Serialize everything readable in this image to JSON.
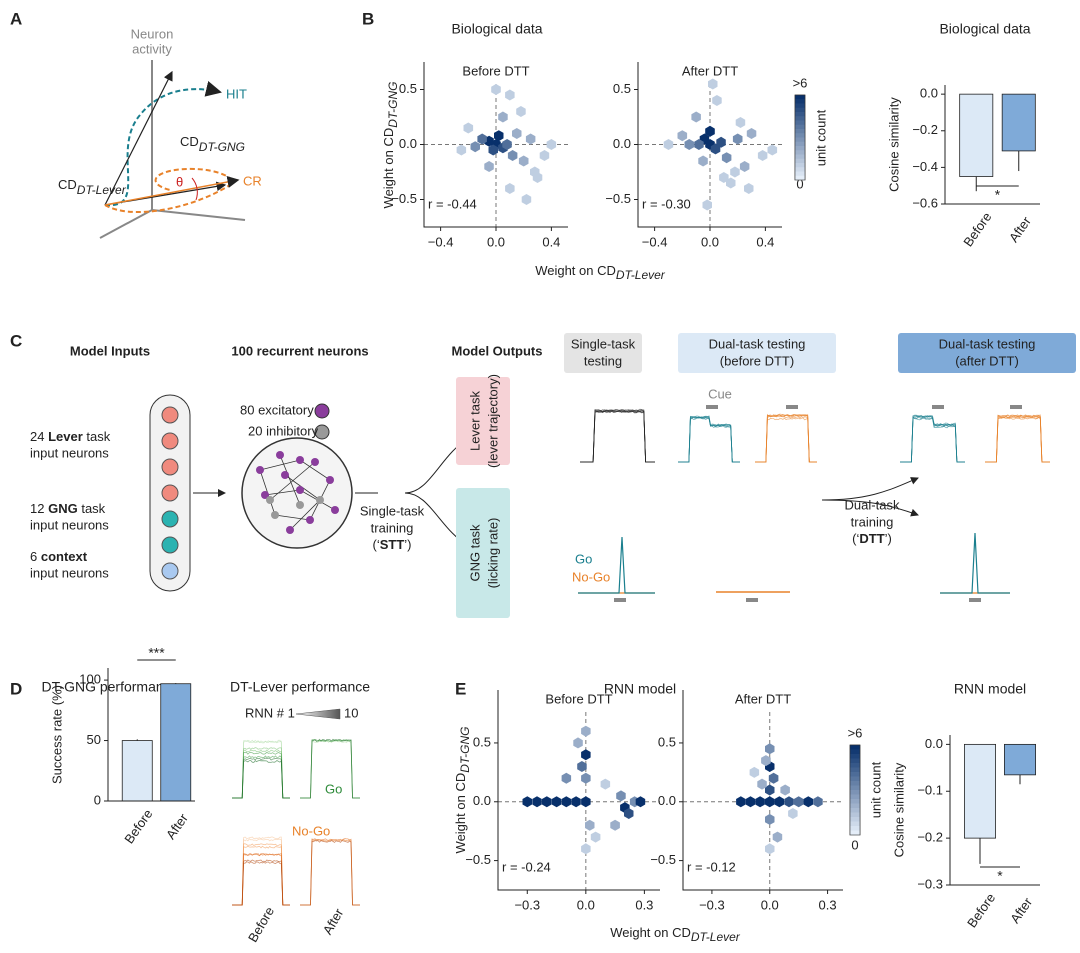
{
  "figure": {
    "panel_labels": [
      "A",
      "B",
      "C",
      "D",
      "E"
    ],
    "a": {
      "axis_label": [
        "Neuron",
        "activity"
      ],
      "hit": "HIT",
      "cr": "CR",
      "theta": "θ",
      "cd": "CD",
      "gng_sub": "DT-GNG",
      "lever_sub": "DT-Lever"
    },
    "b": {
      "title": "Biological data",
      "ylabel": "Weight on CD",
      "ylabel_sub": "DT-GNG",
      "xlabel": "Weight on CD",
      "xlabel_sub": "DT-Lever",
      "colorbar": {
        "top": ">6",
        "bottom": "0",
        "title": "unit count"
      }
    },
    "c": {
      "inputs_title": "Model Inputs",
      "neurons_title": "100 recurrent neurons",
      "outputs_title": "Model Outputs",
      "lever_in": [
        "24",
        "Lever",
        "task",
        "input neurons"
      ],
      "gng_in": [
        "12",
        "GNG",
        "task",
        "input neurons"
      ],
      "context_in": [
        "6",
        "context",
        "input neurons"
      ],
      "excitatory": "80 excitatory",
      "inhibitory": "20 inhibitory",
      "stt": [
        "Single-task",
        "training",
        "(‘",
        "STT",
        "’)"
      ],
      "dtt": [
        "Dual-task",
        "training",
        "(‘",
        "DTT",
        "’)"
      ],
      "lever_task": [
        "Lever task",
        "(lever trajectory)"
      ],
      "gng_task": [
        "GNG task",
        "(licking rate)"
      ],
      "single_testing": [
        "Single-task",
        "testing"
      ],
      "dual_before": [
        "Dual-task testing",
        "(before DTT)"
      ],
      "dual_after": [
        "Dual-task testing",
        "(after DTT)"
      ],
      "cue": "Cue",
      "go": "Go",
      "nogo": "No-Go"
    },
    "d": {
      "lever_title": "DT-Lever performance",
      "rnn": "RNN # 1",
      "rnn_end": "10",
      "go": "Go",
      "nogo": "No-Go",
      "before": "Before",
      "after": "After"
    },
    "e": {
      "title": "RNN model",
      "ylabel": "Weight on CD",
      "ylabel_sub": "DT-GNG",
      "xlabel": "Weight on CD",
      "xlabel_sub": "DT-Lever",
      "colorbar": {
        "top": ">6",
        "bottom": "0",
        "title": "unit count"
      }
    }
  },
  "chart_data": [
    {
      "type": "hexbin",
      "title": "Before DTT",
      "annotation": "r = -0.44",
      "xlim": [
        -0.52,
        0.52
      ],
      "ylim": [
        -0.75,
        0.75
      ],
      "clim": [
        0,
        6
      ],
      "cmap": [
        "#e4edf8",
        "#08306b"
      ],
      "ref_lines": [
        0,
        0
      ],
      "xticks": [
        {
          "value": -0.4,
          "label": "−0.4"
        },
        {
          "value": 0,
          "label": "0.0"
        },
        {
          "value": 0.4,
          "label": "0.4"
        }
      ],
      "yticks": [
        {
          "value": -0.5,
          "label": "−0.5"
        },
        {
          "value": 0,
          "label": "0.0"
        },
        {
          "value": 0.5,
          "label": "0.5"
        }
      ],
      "x": [
        0,
        -0.05,
        0.05,
        0.02,
        -0.02,
        0.08,
        -0.1,
        0.12,
        0.15,
        -0.15,
        0.2,
        0.25,
        0.3,
        -0.2,
        0.05,
        0.1,
        -0.05,
        0.18,
        0.35,
        0.1,
        -0.25,
        0.22,
        0.4,
        0.0,
        0.28
      ],
      "y": [
        0,
        0.03,
        -0.03,
        0.08,
        -0.05,
        0.0,
        0.05,
        -0.1,
        0.1,
        -0.02,
        -0.15,
        0.05,
        -0.3,
        0.15,
        0.25,
        -0.4,
        -0.2,
        0.3,
        -0.1,
        0.45,
        -0.05,
        -0.5,
        0.0,
        0.5,
        -0.25
      ],
      "counts": [
        6,
        6,
        5,
        6,
        5,
        4,
        4,
        3,
        2,
        3,
        2,
        2,
        1,
        1,
        2,
        1,
        2,
        1,
        1,
        1,
        1,
        1,
        1,
        1,
        1
      ]
    },
    {
      "type": "hexbin",
      "title": "After DTT",
      "annotation": "r = -0.30",
      "xlim": [
        -0.52,
        0.52
      ],
      "ylim": [
        -0.75,
        0.75
      ],
      "clim": [
        0,
        6
      ],
      "cmap": [
        "#e4edf8",
        "#08306b"
      ],
      "ref_lines": [
        0,
        0
      ],
      "xticks": [
        {
          "value": -0.4,
          "label": "−0.4"
        },
        {
          "value": 0,
          "label": "0.0"
        },
        {
          "value": 0.4,
          "label": "0.4"
        }
      ],
      "yticks": [
        {
          "value": -0.5,
          "label": "−0.5"
        },
        {
          "value": 0,
          "label": "0.0"
        },
        {
          "value": 0.5,
          "label": "0.5"
        }
      ],
      "x": [
        0,
        -0.04,
        0.04,
        0.0,
        -0.08,
        0.08,
        -0.15,
        0.12,
        0.2,
        -0.2,
        0.25,
        0.3,
        0.15,
        -0.1,
        0.05,
        0.1,
        -0.05,
        0.22,
        0.38,
        0.02,
        -0.3,
        0.28,
        0.45,
        -0.02,
        0.18
      ],
      "y": [
        0,
        0.05,
        -0.04,
        0.12,
        0.0,
        0.02,
        0.0,
        -0.12,
        0.05,
        0.08,
        -0.2,
        0.1,
        -0.35,
        0.25,
        0.4,
        -0.3,
        -0.15,
        0.2,
        -0.1,
        0.55,
        0.0,
        -0.4,
        -0.05,
        -0.55,
        -0.25
      ],
      "counts": [
        6,
        6,
        5,
        6,
        4,
        5,
        3,
        3,
        3,
        2,
        2,
        2,
        1,
        2,
        1,
        1,
        2,
        1,
        1,
        1,
        1,
        1,
        1,
        1,
        1
      ]
    },
    {
      "type": "bar",
      "title": "Biological data",
      "ylabel": "Cosine similarity",
      "categories": [
        "Before",
        "After"
      ],
      "values": [
        -0.45,
        -0.31
      ],
      "errors": [
        0.08,
        0.11
      ],
      "colors": [
        "#dce9f6",
        "#7faad8"
      ],
      "ylim": [
        -0.6,
        0.05
      ],
      "annotation": "*",
      "yticks": [
        {
          "value": 0,
          "label": "0.0"
        },
        {
          "value": -0.2,
          "label": "−0.2"
        },
        {
          "value": -0.4,
          "label": "−0.4"
        },
        {
          "value": -0.6,
          "label": "−0.6"
        }
      ]
    },
    {
      "type": "bar",
      "title": "DT-GNG performance",
      "ylabel": "Success rate (%)",
      "categories": [
        "Before",
        "After"
      ],
      "values": [
        50,
        97
      ],
      "errors": [
        1,
        0.5
      ],
      "colors": [
        "#dce9f6",
        "#7faad8"
      ],
      "ylim": [
        0,
        110
      ],
      "annotation": "***",
      "annotation_top": true,
      "yticks": [
        0,
        50,
        100
      ]
    },
    {
      "type": "hexbin",
      "title": "Before DTT",
      "annotation": "r = -0.24",
      "xlim": [
        -0.45,
        0.38
      ],
      "ylim": [
        -0.75,
        0.95
      ],
      "clim": [
        0,
        6
      ],
      "cmap": [
        "#e4edf8",
        "#08306b"
      ],
      "ref_lines": [
        0,
        0
      ],
      "xticks": [
        {
          "value": -0.3,
          "label": "−0.3"
        },
        {
          "value": 0,
          "label": "0.0"
        },
        {
          "value": 0.3,
          "label": "0.3"
        }
      ],
      "yticks": [
        {
          "value": -0.5,
          "label": "−0.5"
        },
        {
          "value": 0,
          "label": "0.0"
        },
        {
          "value": 0.5,
          "label": "0.5"
        }
      ],
      "x": [
        -0.3,
        -0.25,
        -0.2,
        -0.15,
        -0.1,
        -0.05,
        0,
        0,
        0,
        0,
        -0.02,
        0.02,
        0.2,
        0.22,
        0.25,
        0.18,
        0.1,
        -0.1,
        0.05,
        0.15,
        0.28,
        0.0,
        -0.04
      ],
      "y": [
        0,
        0,
        0,
        0,
        0,
        0,
        0,
        0.2,
        0.4,
        0.6,
        0.3,
        -0.2,
        -0.05,
        -0.1,
        0,
        0.05,
        0.15,
        0.2,
        -0.3,
        -0.2,
        0,
        -0.4,
        0.5
      ],
      "counts": [
        6,
        6,
        6,
        6,
        6,
        6,
        6,
        3,
        6,
        2,
        4,
        2,
        6,
        5,
        3,
        3,
        1,
        3,
        1,
        2,
        6,
        1,
        2
      ]
    },
    {
      "type": "hexbin",
      "title": "After DTT",
      "annotation": "r = -0.12",
      "xlim": [
        -0.45,
        0.38
      ],
      "ylim": [
        -0.75,
        0.95
      ],
      "clim": [
        0,
        6
      ],
      "cmap": [
        "#e4edf8",
        "#08306b"
      ],
      "ref_lines": [
        0,
        0
      ],
      "xticks": [
        {
          "value": -0.3,
          "label": "−0.3"
        },
        {
          "value": 0,
          "label": "0.0"
        },
        {
          "value": 0.3,
          "label": "0.3"
        }
      ],
      "yticks": [
        {
          "value": -0.5,
          "label": "−0.5"
        },
        {
          "value": 0,
          "label": "0.0"
        },
        {
          "value": 0.5,
          "label": "0.5"
        }
      ],
      "x": [
        -0.15,
        -0.1,
        -0.05,
        0,
        0,
        0,
        0,
        0,
        0.05,
        0.1,
        0.15,
        0.2,
        0.25,
        0.02,
        -0.02,
        0.04,
        -0.04,
        0.08,
        0.12,
        0.0,
        -0.08
      ],
      "y": [
        0,
        0,
        0,
        0,
        0.1,
        0.3,
        0.45,
        -0.15,
        0,
        0,
        0,
        0,
        0,
        0.2,
        0.35,
        -0.3,
        0.15,
        0.1,
        -0.1,
        -0.4,
        0.25
      ],
      "counts": [
        6,
        6,
        6,
        6,
        5,
        6,
        3,
        3,
        6,
        5,
        4,
        6,
        4,
        4,
        2,
        2,
        2,
        2,
        1,
        1,
        1
      ]
    },
    {
      "type": "bar",
      "title": "RNN model",
      "ylabel": "Cosine similarity",
      "categories": [
        "Before",
        "After"
      ],
      "values": [
        -0.2,
        -0.065
      ],
      "errors": [
        0.055,
        0.02
      ],
      "colors": [
        "#dce9f6",
        "#7faad8"
      ],
      "ylim": [
        -0.3,
        0.02
      ],
      "annotation": "*",
      "yticks": [
        {
          "value": 0,
          "label": "0.0"
        },
        {
          "value": -0.1,
          "label": "−0.1"
        },
        {
          "value": -0.2,
          "label": "−0.2"
        },
        {
          "value": -0.3,
          "label": "−0.3"
        }
      ]
    }
  ]
}
